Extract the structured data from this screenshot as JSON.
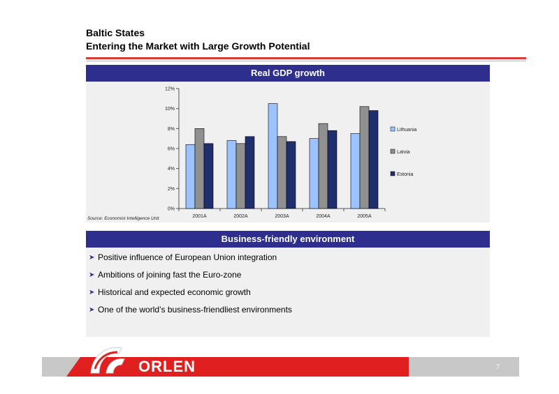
{
  "header": {
    "line1": "Baltic States",
    "line2": "Entering the Market with Large Growth Potential"
  },
  "gdp_panel": {
    "title": "Real GDP growth",
    "source": "Source: Economist Intelligence Unit"
  },
  "chart_data": {
    "type": "bar",
    "categories": [
      "2001A",
      "2002A",
      "2003A",
      "2004A",
      "2005A"
    ],
    "series": [
      {
        "name": "Lithuania",
        "values": [
          6.4,
          6.8,
          10.5,
          7.0,
          7.5
        ],
        "color": "#9cc3ff"
      },
      {
        "name": "Latvia",
        "values": [
          8.0,
          6.5,
          7.2,
          8.5,
          10.2
        ],
        "color": "#909090"
      },
      {
        "name": "Estonia",
        "values": [
          6.5,
          7.2,
          6.7,
          7.8,
          9.8
        ],
        "color": "#1f2f6e"
      }
    ],
    "ylim": [
      0,
      12
    ],
    "yticks": [
      0,
      2,
      4,
      6,
      8,
      10,
      12
    ],
    "ytick_labels": [
      "0%",
      "2%",
      "4%",
      "6%",
      "8%",
      "10%",
      "12%"
    ],
    "title": "Real GDP growth",
    "xlabel": "",
    "ylabel": "",
    "grid": false,
    "legend": "right"
  },
  "biz_panel": {
    "title": "Business-friendly environment",
    "bullets": [
      "Positive influence of European Union integration",
      "Ambitions of joining fast the Euro-zone",
      "Historical and expected economic growth",
      "One of the world’s business-friendliest environments"
    ]
  },
  "footer": {
    "brand": "ORLEN",
    "page_number": "7"
  },
  "colors": {
    "header_blue": "#2e2e8f",
    "accent_red": "#e0201f",
    "panel_gray": "#f0f0f0"
  }
}
